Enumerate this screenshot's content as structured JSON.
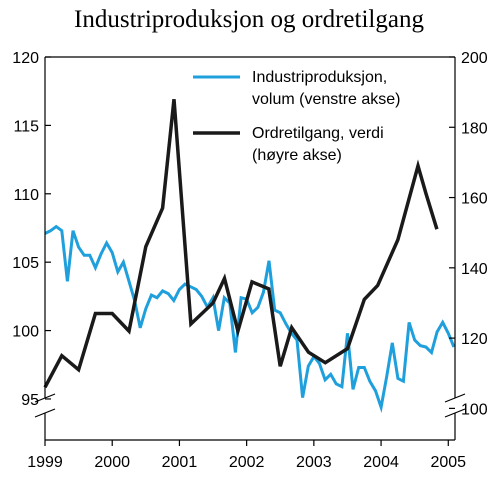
{
  "chart_data": {
    "type": "line",
    "title": "Industriproduksjon og ordretilgang",
    "x_ticks": [
      "1999",
      "2000",
      "2001",
      "2002",
      "2003",
      "2004",
      "2005"
    ],
    "xlim": [
      1999,
      2005.1
    ],
    "y_left": {
      "ticks": [
        "95",
        "100",
        "105",
        "110",
        "115",
        "120"
      ],
      "ylim": [
        92,
        120
      ],
      "axis_break": true
    },
    "y_right": {
      "ticks": [
        "100",
        "120",
        "140",
        "160",
        "180",
        "200"
      ],
      "ylim": [
        91,
        200
      ],
      "axis_break": true
    },
    "legend_position": "top-right",
    "series": [
      {
        "name": "Industriproduksjon, volum (venstre akse)",
        "axis": "left",
        "color": "#1fa0dc",
        "x": [
          1999.0,
          1999.083,
          1999.167,
          1999.25,
          1999.333,
          1999.417,
          1999.5,
          1999.583,
          1999.667,
          1999.75,
          1999.833,
          1999.917,
          2000.0,
          2000.083,
          2000.167,
          2000.25,
          2000.333,
          2000.417,
          2000.5,
          2000.583,
          2000.667,
          2000.75,
          2000.833,
          2000.917,
          2001.0,
          2001.083,
          2001.167,
          2001.25,
          2001.333,
          2001.417,
          2001.5,
          2001.583,
          2001.667,
          2001.75,
          2001.833,
          2001.917,
          2002.0,
          2002.083,
          2002.167,
          2002.25,
          2002.333,
          2002.417,
          2002.5,
          2002.583,
          2002.667,
          2002.75,
          2002.833,
          2002.917,
          2003.0,
          2003.083,
          2003.167,
          2003.25,
          2003.333,
          2003.417,
          2003.5,
          2003.583,
          2003.667,
          2003.75,
          2003.833,
          2003.917,
          2004.0,
          2004.083,
          2004.167,
          2004.25,
          2004.333,
          2004.417,
          2004.5,
          2004.583,
          2004.667,
          2004.75,
          2004.833,
          2004.917,
          2005.0,
          2005.083
        ],
        "values": [
          107.1,
          107.3,
          107.6,
          107.3,
          103.6,
          107.3,
          106.1,
          105.5,
          105.5,
          104.6,
          105.6,
          106.4,
          105.7,
          104.3,
          105.0,
          103.6,
          102.2,
          100.2,
          101.6,
          102.6,
          102.4,
          102.9,
          102.7,
          102.2,
          103.0,
          103.4,
          103.2,
          103.0,
          102.5,
          101.7,
          102.4,
          100.0,
          102.4,
          102.0,
          98.4,
          102.4,
          102.3,
          101.3,
          101.7,
          102.8,
          105.1,
          101.5,
          101.3,
          100.5,
          99.8,
          99.3,
          95.1,
          97.4,
          98.1,
          97.6,
          96.4,
          96.8,
          96.1,
          95.9,
          99.8,
          95.7,
          97.3,
          97.3,
          96.3,
          95.6,
          94.4,
          96.6,
          99.1,
          96.5,
          96.3,
          100.6,
          99.3,
          98.9,
          98.8,
          98.4,
          99.9,
          100.6,
          99.8,
          98.8
        ]
      },
      {
        "name": "Ordretilgang, verdi (høyre akse)",
        "axis": "right",
        "color": "#1a1a1a",
        "x": [
          1999.0,
          1999.25,
          1999.5,
          1999.75,
          2000.0,
          2000.25,
          2000.5,
          2000.75,
          2000.92,
          2001.17,
          2001.5,
          2001.67,
          2001.87,
          2002.08,
          2002.33,
          2002.5,
          2002.67,
          2002.92,
          2003.17,
          2003.5,
          2003.75,
          2003.95,
          2004.25,
          2004.55,
          2004.67,
          2004.83
        ],
        "values": [
          106,
          115,
          111,
          127,
          127,
          122,
          146,
          157,
          188,
          124,
          130,
          137,
          122,
          136,
          134,
          112,
          123,
          116,
          113,
          117,
          131,
          135,
          148,
          169,
          161,
          151
        ]
      }
    ]
  }
}
